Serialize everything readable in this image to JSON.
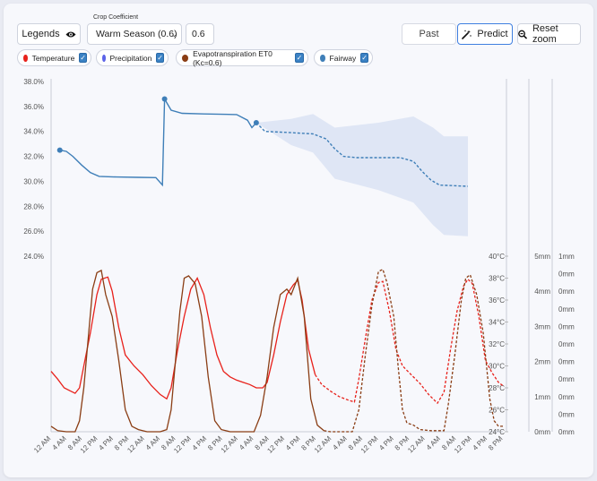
{
  "toolbar": {
    "legends_label": "Legends",
    "crop_coefficient_label": "Crop Coefficient",
    "crop_select_value": "Warm Season (0.6)",
    "crop_coefficient_value": "0.6",
    "past_label": "Past",
    "predict_label": "Predict",
    "reset_zoom_label": "Reset zoom"
  },
  "legend": [
    {
      "label": "Temperature",
      "color": "#e8211b",
      "checked": true
    },
    {
      "label": "Precipitation",
      "color": "#5b63e8",
      "checked": true
    },
    {
      "label": "Evapotranspiration ET0 (Kc=0.6)",
      "color": "#8a3d14",
      "checked": true
    },
    {
      "label": "Fairway",
      "color": "#3f7fb8",
      "checked": true
    }
  ],
  "colors": {
    "temperature": "#e8211b",
    "precipitation": "#6b72e3",
    "et0": "#8a3d14",
    "fairway": "#3f7fb8",
    "band": "#dbe3f3"
  },
  "chart_data": {
    "type": "line",
    "x_labels": [
      "12 AM",
      "4 AM",
      "8 AM",
      "12 PM",
      "4 PM",
      "8 PM",
      "12 AM",
      "4 AM",
      "8 AM",
      "12 PM",
      "4 PM",
      "8 PM",
      "12 AM",
      "4 AM",
      "8 AM",
      "12 PM",
      "4 PM",
      "8 PM",
      "12 AM",
      "4 AM",
      "8 AM",
      "12 PM",
      "4 PM",
      "8 PM",
      "12 AM",
      "4 AM",
      "8 AM",
      "12 PM",
      "4 PM",
      "8 PM"
    ],
    "forecast_start_hour": 72,
    "axes": {
      "moisture": {
        "ticks": [
          "24.0%",
          "26.0%",
          "28.0%",
          "30.0%",
          "32.0%",
          "34.0%",
          "36.0%",
          "38.0%"
        ],
        "range": [
          24,
          38
        ]
      },
      "temperature": {
        "ticks": [
          "24°C",
          "26°C",
          "28°C",
          "30°C",
          "32°C",
          "34°C",
          "36°C",
          "38°C",
          "40°C"
        ],
        "range": [
          24,
          40
        ]
      },
      "precipitation": {
        "ticks": [
          "0mm",
          "1mm",
          "2mm",
          "3mm",
          "4mm",
          "5mm"
        ],
        "range": [
          0,
          5
        ]
      },
      "et0": {
        "ticks": [
          "0mm",
          "0mm",
          "0mm",
          "0mm",
          "0mm",
          "0mm",
          "0mm",
          "0mm",
          "0mm",
          "0mm",
          "1mm"
        ]
      }
    },
    "series": [
      {
        "name": "Fairway",
        "unit": "%",
        "points": [
          [
            4,
            32.5
          ],
          [
            7,
            32.4
          ],
          [
            10,
            32
          ],
          [
            14,
            31.3
          ],
          [
            18,
            30.7
          ],
          [
            22,
            30.4
          ],
          [
            30,
            30.35
          ],
          [
            40,
            30.32
          ],
          [
            48,
            30.3
          ],
          [
            51,
            29.7
          ],
          [
            52,
            36.6
          ],
          [
            55,
            35.7
          ],
          [
            60,
            35.45
          ],
          [
            70,
            35.4
          ],
          [
            85,
            35.35
          ],
          [
            90,
            34.9
          ],
          [
            92,
            34.3
          ],
          [
            94,
            34.7
          ]
        ],
        "forecast": [
          [
            94,
            34.7
          ],
          [
            98,
            34.0
          ],
          [
            110,
            33.9
          ],
          [
            120,
            33.8
          ],
          [
            126,
            33.4
          ],
          [
            130,
            32.6
          ],
          [
            134,
            32.0
          ],
          [
            140,
            31.9
          ],
          [
            160,
            31.9
          ],
          [
            166,
            31.6
          ],
          [
            170,
            30.8
          ],
          [
            174,
            30.1
          ],
          [
            178,
            29.7
          ],
          [
            191,
            29.6
          ]
        ],
        "band_upper": [
          [
            94,
            34.7
          ],
          [
            110,
            35.0
          ],
          [
            120,
            35.4
          ],
          [
            130,
            34.3
          ],
          [
            150,
            34.7
          ],
          [
            166,
            35.2
          ],
          [
            175,
            34.3
          ],
          [
            180,
            33.6
          ],
          [
            191,
            33.6
          ]
        ],
        "band_lower": [
          [
            94,
            34.7
          ],
          [
            110,
            32.9
          ],
          [
            120,
            32.3
          ],
          [
            130,
            30.2
          ],
          [
            150,
            29.3
          ],
          [
            166,
            28.3
          ],
          [
            175,
            26.5
          ],
          [
            180,
            25.7
          ],
          [
            191,
            25.6
          ]
        ]
      },
      {
        "name": "Temperature",
        "unit": "°C",
        "points": [
          [
            0,
            29.5
          ],
          [
            3,
            28.8
          ],
          [
            6,
            28.0
          ],
          [
            9,
            27.7
          ],
          [
            11,
            27.5
          ],
          [
            13,
            28.0
          ],
          [
            15,
            30.0
          ],
          [
            18,
            33.0
          ],
          [
            21,
            36.5
          ],
          [
            23,
            37.9
          ],
          [
            26,
            38.1
          ],
          [
            28,
            36.8
          ],
          [
            31,
            33.5
          ],
          [
            34,
            31.0
          ],
          [
            38,
            30.0
          ],
          [
            42,
            29.2
          ],
          [
            46,
            28.2
          ],
          [
            50,
            27.4
          ],
          [
            53,
            27.0
          ],
          [
            55,
            28.0
          ],
          [
            58,
            31.5
          ],
          [
            61,
            34.5
          ],
          [
            64,
            37.0
          ],
          [
            67,
            38.0
          ],
          [
            70,
            36.5
          ],
          [
            73,
            33.5
          ],
          [
            76,
            31.0
          ],
          [
            79,
            29.5
          ],
          [
            82,
            29.0
          ],
          [
            85,
            28.7
          ],
          [
            88,
            28.5
          ],
          [
            91,
            28.3
          ],
          [
            94,
            28.0
          ],
          [
            97,
            28.0
          ],
          [
            99,
            28.5
          ],
          [
            102,
            31.0
          ],
          [
            105,
            34.0
          ],
          [
            108,
            36.5
          ],
          [
            111,
            37.4
          ],
          [
            113,
            37.8
          ],
          [
            115,
            36.0
          ],
          [
            118,
            31.5
          ],
          [
            121,
            29.2
          ]
        ],
        "forecast": [
          [
            121,
            29.2
          ],
          [
            124,
            28.3
          ],
          [
            128,
            27.7
          ],
          [
            132,
            27.2
          ],
          [
            136,
            26.9
          ],
          [
            139,
            26.7
          ],
          [
            141,
            28.8
          ],
          [
            144,
            32.5
          ],
          [
            147,
            36.0
          ],
          [
            150,
            37.6
          ],
          [
            152,
            37.7
          ],
          [
            155,
            35.0
          ],
          [
            158,
            31.5
          ],
          [
            161,
            30.0
          ],
          [
            165,
            29.2
          ],
          [
            169,
            28.4
          ],
          [
            173,
            27.4
          ],
          [
            177,
            26.6
          ],
          [
            180,
            27.6
          ],
          [
            183,
            31.5
          ],
          [
            186,
            35.0
          ],
          [
            189,
            37.3
          ],
          [
            191,
            37.9
          ],
          [
            193,
            37.5
          ],
          [
            196,
            34.5
          ],
          [
            199,
            30.5
          ],
          [
            202,
            29.4
          ],
          [
            205,
            28.5
          ],
          [
            207,
            28.2
          ]
        ]
      },
      {
        "name": "Evapotranspiration ET0 (Kc=0.6)",
        "unit": "mm",
        "points": [
          [
            0,
            24.5
          ],
          [
            3,
            24.1
          ],
          [
            7,
            24.0
          ],
          [
            11,
            24.0
          ],
          [
            13,
            25.0
          ],
          [
            15,
            28.0
          ],
          [
            17,
            32.5
          ],
          [
            19,
            37.0
          ],
          [
            21,
            38.5
          ],
          [
            23,
            38.7
          ],
          [
            25,
            36.5
          ],
          [
            28,
            34.5
          ],
          [
            31,
            30.5
          ],
          [
            34,
            26.0
          ],
          [
            37,
            24.5
          ],
          [
            40,
            24.2
          ],
          [
            44,
            24.0
          ],
          [
            50,
            24.0
          ],
          [
            53,
            24.2
          ],
          [
            55,
            26.0
          ],
          [
            57,
            30.5
          ],
          [
            59,
            35.0
          ],
          [
            61,
            38.0
          ],
          [
            63,
            38.2
          ],
          [
            66,
            37.5
          ],
          [
            69,
            34.5
          ],
          [
            72,
            29.0
          ],
          [
            75,
            25.0
          ],
          [
            78,
            24.2
          ],
          [
            82,
            24.0
          ],
          [
            88,
            24.0
          ],
          [
            93,
            24.0
          ],
          [
            96,
            25.5
          ],
          [
            99,
            29.0
          ],
          [
            102,
            33.5
          ],
          [
            105,
            36.5
          ],
          [
            108,
            37.0
          ],
          [
            110,
            36.5
          ],
          [
            113,
            38.0
          ],
          [
            116,
            34.5
          ],
          [
            119,
            27.0
          ],
          [
            122,
            24.6
          ],
          [
            125,
            24.1
          ]
        ],
        "forecast": [
          [
            125,
            24.1
          ],
          [
            128,
            24.0
          ],
          [
            133,
            24.0
          ],
          [
            138,
            24.0
          ],
          [
            141,
            26.0
          ],
          [
            144,
            31.0
          ],
          [
            147,
            35.5
          ],
          [
            150,
            38.6
          ],
          [
            152,
            38.8
          ],
          [
            154,
            37.5
          ],
          [
            157,
            34.5
          ],
          [
            159,
            30.0
          ],
          [
            161,
            26.0
          ],
          [
            163,
            24.8
          ],
          [
            166,
            24.6
          ],
          [
            169,
            24.2
          ],
          [
            174,
            24.1
          ],
          [
            180,
            24.1
          ],
          [
            182,
            26.5
          ],
          [
            185,
            31.0
          ],
          [
            188,
            36.0
          ],
          [
            190,
            38.0
          ],
          [
            192,
            38.3
          ],
          [
            195,
            36.5
          ],
          [
            198,
            33.0
          ],
          [
            201,
            27.0
          ],
          [
            203,
            25.0
          ],
          [
            205,
            24.5
          ],
          [
            207,
            24.5
          ]
        ]
      },
      {
        "name": "Precipitation",
        "unit": "mm",
        "points": []
      }
    ]
  }
}
